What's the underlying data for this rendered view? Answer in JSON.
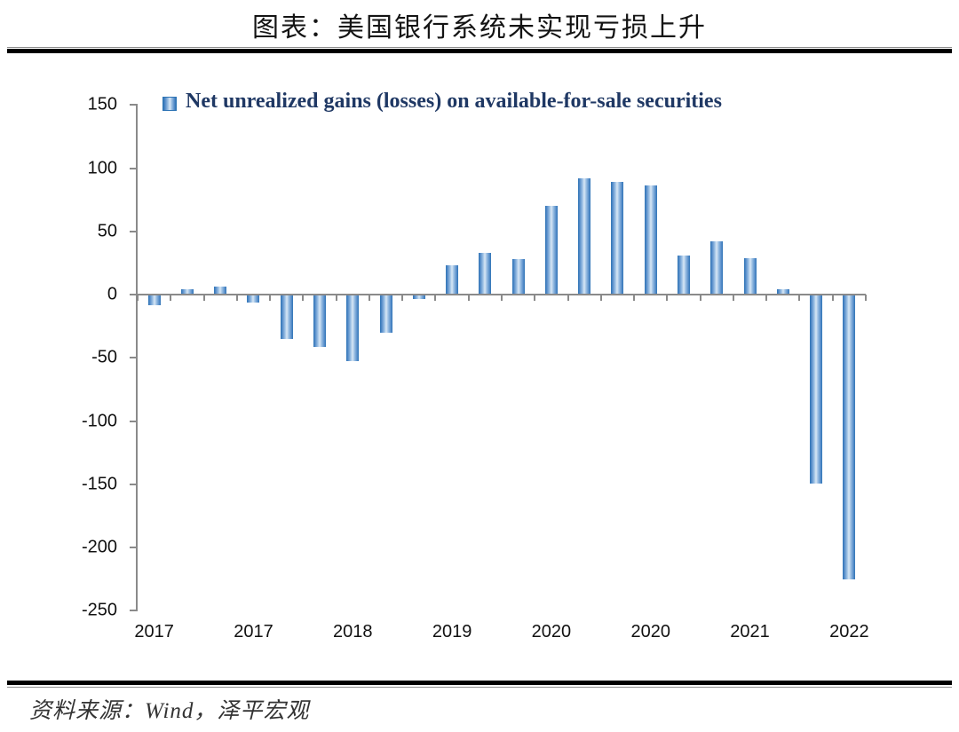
{
  "page": {
    "title": "图表：美国银行系统未实现亏损上升",
    "source_note": "资料来源：Wind，泽平宏观"
  },
  "legend": {
    "label": "Net unrealized gains (losses) on available-for-sale securities"
  },
  "colors": {
    "bar_edge": "#2E74B5",
    "bar_highlight": "#D9E7F5",
    "axis": "#8A8A8A",
    "legend_text": "#1F3864",
    "rule": "#000000"
  },
  "chart_data": {
    "type": "bar",
    "title": "图表：美国银行系统未实现亏损上升",
    "series_name": "Net unrealized gains (losses) on available-for-sale securities",
    "values": [
      -8,
      4,
      6,
      -6,
      -35,
      -41,
      -52,
      -30,
      -3,
      23,
      33,
      28,
      70,
      92,
      89,
      86,
      31,
      42,
      29,
      4,
      -149,
      -225
    ],
    "x_axis_labels": [
      {
        "label": "2017",
        "bar_index": 0
      },
      {
        "label": "2017",
        "bar_index": 3
      },
      {
        "label": "2018",
        "bar_index": 6
      },
      {
        "label": "2019",
        "bar_index": 9
      },
      {
        "label": "2020",
        "bar_index": 12
      },
      {
        "label": "2020",
        "bar_index": 15
      },
      {
        "label": "2021",
        "bar_index": 18
      },
      {
        "label": "2022",
        "bar_index": 21
      }
    ],
    "y_ticks": [
      150,
      100,
      50,
      0,
      -50,
      -100,
      -150,
      -200,
      -250
    ],
    "ylim": [
      -250,
      150
    ],
    "grid": false,
    "legend_position": "top-left"
  }
}
